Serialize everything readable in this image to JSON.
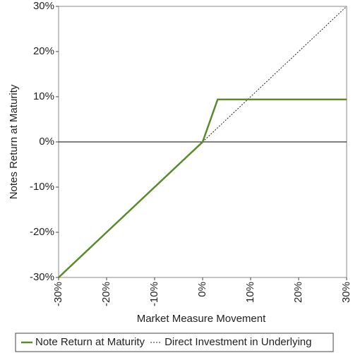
{
  "chart_data": {
    "type": "line",
    "x_label": "Market Measure Movement",
    "y_label": "Notes Return at Maturity",
    "xlim": [
      -30,
      30
    ],
    "ylim": [
      -30,
      30
    ],
    "xticks": [
      {
        "value": -30,
        "label": "-30%"
      },
      {
        "value": -20,
        "label": "-20%"
      },
      {
        "value": -10,
        "label": "-10%"
      },
      {
        "value": 0,
        "label": "0%"
      },
      {
        "value": 10,
        "label": "10%"
      },
      {
        "value": 20,
        "label": "20%"
      },
      {
        "value": 30,
        "label": "30%"
      }
    ],
    "yticks": [
      {
        "value": -30,
        "label": "-30%"
      },
      {
        "value": -20,
        "label": "-20%"
      },
      {
        "value": -10,
        "label": "-10%"
      },
      {
        "value": 0,
        "label": "0%"
      },
      {
        "value": 10,
        "label": "10%"
      },
      {
        "value": 20,
        "label": "20%"
      },
      {
        "value": 30,
        "label": "30%"
      }
    ],
    "legend": "bottom",
    "series": [
      {
        "name": "Note Return at Maturity",
        "color": "#5a8a2a",
        "style": "solid",
        "x": [
          -30,
          0,
          3.13,
          30
        ],
        "values": [
          -30,
          0,
          9.4,
          9.4
        ]
      },
      {
        "name": "Direct Investment in Underlying",
        "color": "#222222",
        "style": "dotted",
        "x": [
          -30,
          30
        ],
        "values": [
          -30,
          30
        ]
      }
    ]
  }
}
